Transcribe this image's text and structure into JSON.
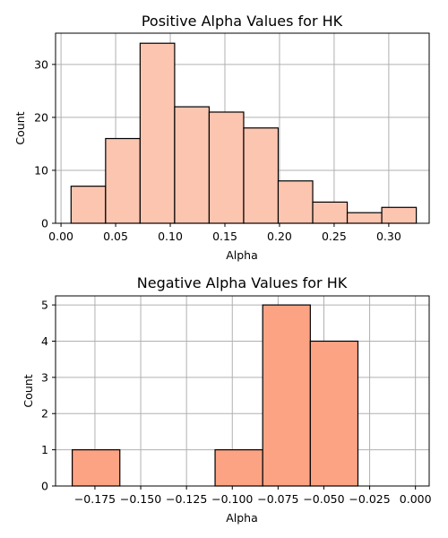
{
  "chart_data": [
    {
      "type": "bar",
      "title": "Positive Alpha Values for HK",
      "xlabel": "Alpha",
      "ylabel": "Count",
      "xlim": [
        -0.005,
        0.337
      ],
      "ylim": [
        0,
        35.9
      ],
      "xticks": [
        0.0,
        0.05,
        0.1,
        0.15,
        0.2,
        0.25,
        0.3
      ],
      "xtick_labels": [
        "0.00",
        "0.05",
        "0.10",
        "0.15",
        "0.20",
        "0.25",
        "0.30"
      ],
      "yticks": [
        0,
        10,
        20,
        30
      ],
      "ytick_labels": [
        "0",
        "10",
        "20",
        "30"
      ],
      "bins": [
        {
          "x0": 0.0092,
          "x1": 0.0408,
          "count": 7
        },
        {
          "x0": 0.0408,
          "x1": 0.0724,
          "count": 16
        },
        {
          "x0": 0.0724,
          "x1": 0.104,
          "count": 34
        },
        {
          "x0": 0.104,
          "x1": 0.1356,
          "count": 22
        },
        {
          "x0": 0.1356,
          "x1": 0.1672,
          "count": 21
        },
        {
          "x0": 0.1672,
          "x1": 0.1988,
          "count": 18
        },
        {
          "x0": 0.1988,
          "x1": 0.2304,
          "count": 8
        },
        {
          "x0": 0.2304,
          "x1": 0.262,
          "count": 4
        },
        {
          "x0": 0.262,
          "x1": 0.2936,
          "count": 2
        },
        {
          "x0": 0.2936,
          "x1": 0.3252,
          "count": 3
        }
      ],
      "color": "#fcc5b0",
      "grid": true
    },
    {
      "type": "bar",
      "title": "Negative Alpha Values for HK",
      "xlabel": "Alpha",
      "ylabel": "Count",
      "xlim": [
        -0.1965,
        0.0075
      ],
      "ylim": [
        0,
        5.25
      ],
      "xticks": [
        -0.175,
        -0.15,
        -0.125,
        -0.1,
        -0.075,
        -0.05,
        -0.025,
        0.0
      ],
      "xtick_labels": [
        "−0.175",
        "−0.150",
        "−0.125",
        "−0.100",
        "−0.075",
        "−0.050",
        "−0.025",
        "0.000"
      ],
      "yticks": [
        0,
        1,
        2,
        3,
        4,
        5
      ],
      "ytick_labels": [
        "0",
        "1",
        "2",
        "3",
        "4",
        "5"
      ],
      "bins": [
        {
          "x0": -0.1874,
          "x1": -0.1614,
          "count": 1
        },
        {
          "x0": -0.1614,
          "x1": -0.1354,
          "count": 0
        },
        {
          "x0": -0.1354,
          "x1": -0.1094,
          "count": 0
        },
        {
          "x0": -0.1094,
          "x1": -0.0834,
          "count": 1
        },
        {
          "x0": -0.0834,
          "x1": -0.0574,
          "count": 5
        },
        {
          "x0": -0.0574,
          "x1": -0.0314,
          "count": 4
        }
      ],
      "color": "#fca384",
      "grid": true
    }
  ]
}
